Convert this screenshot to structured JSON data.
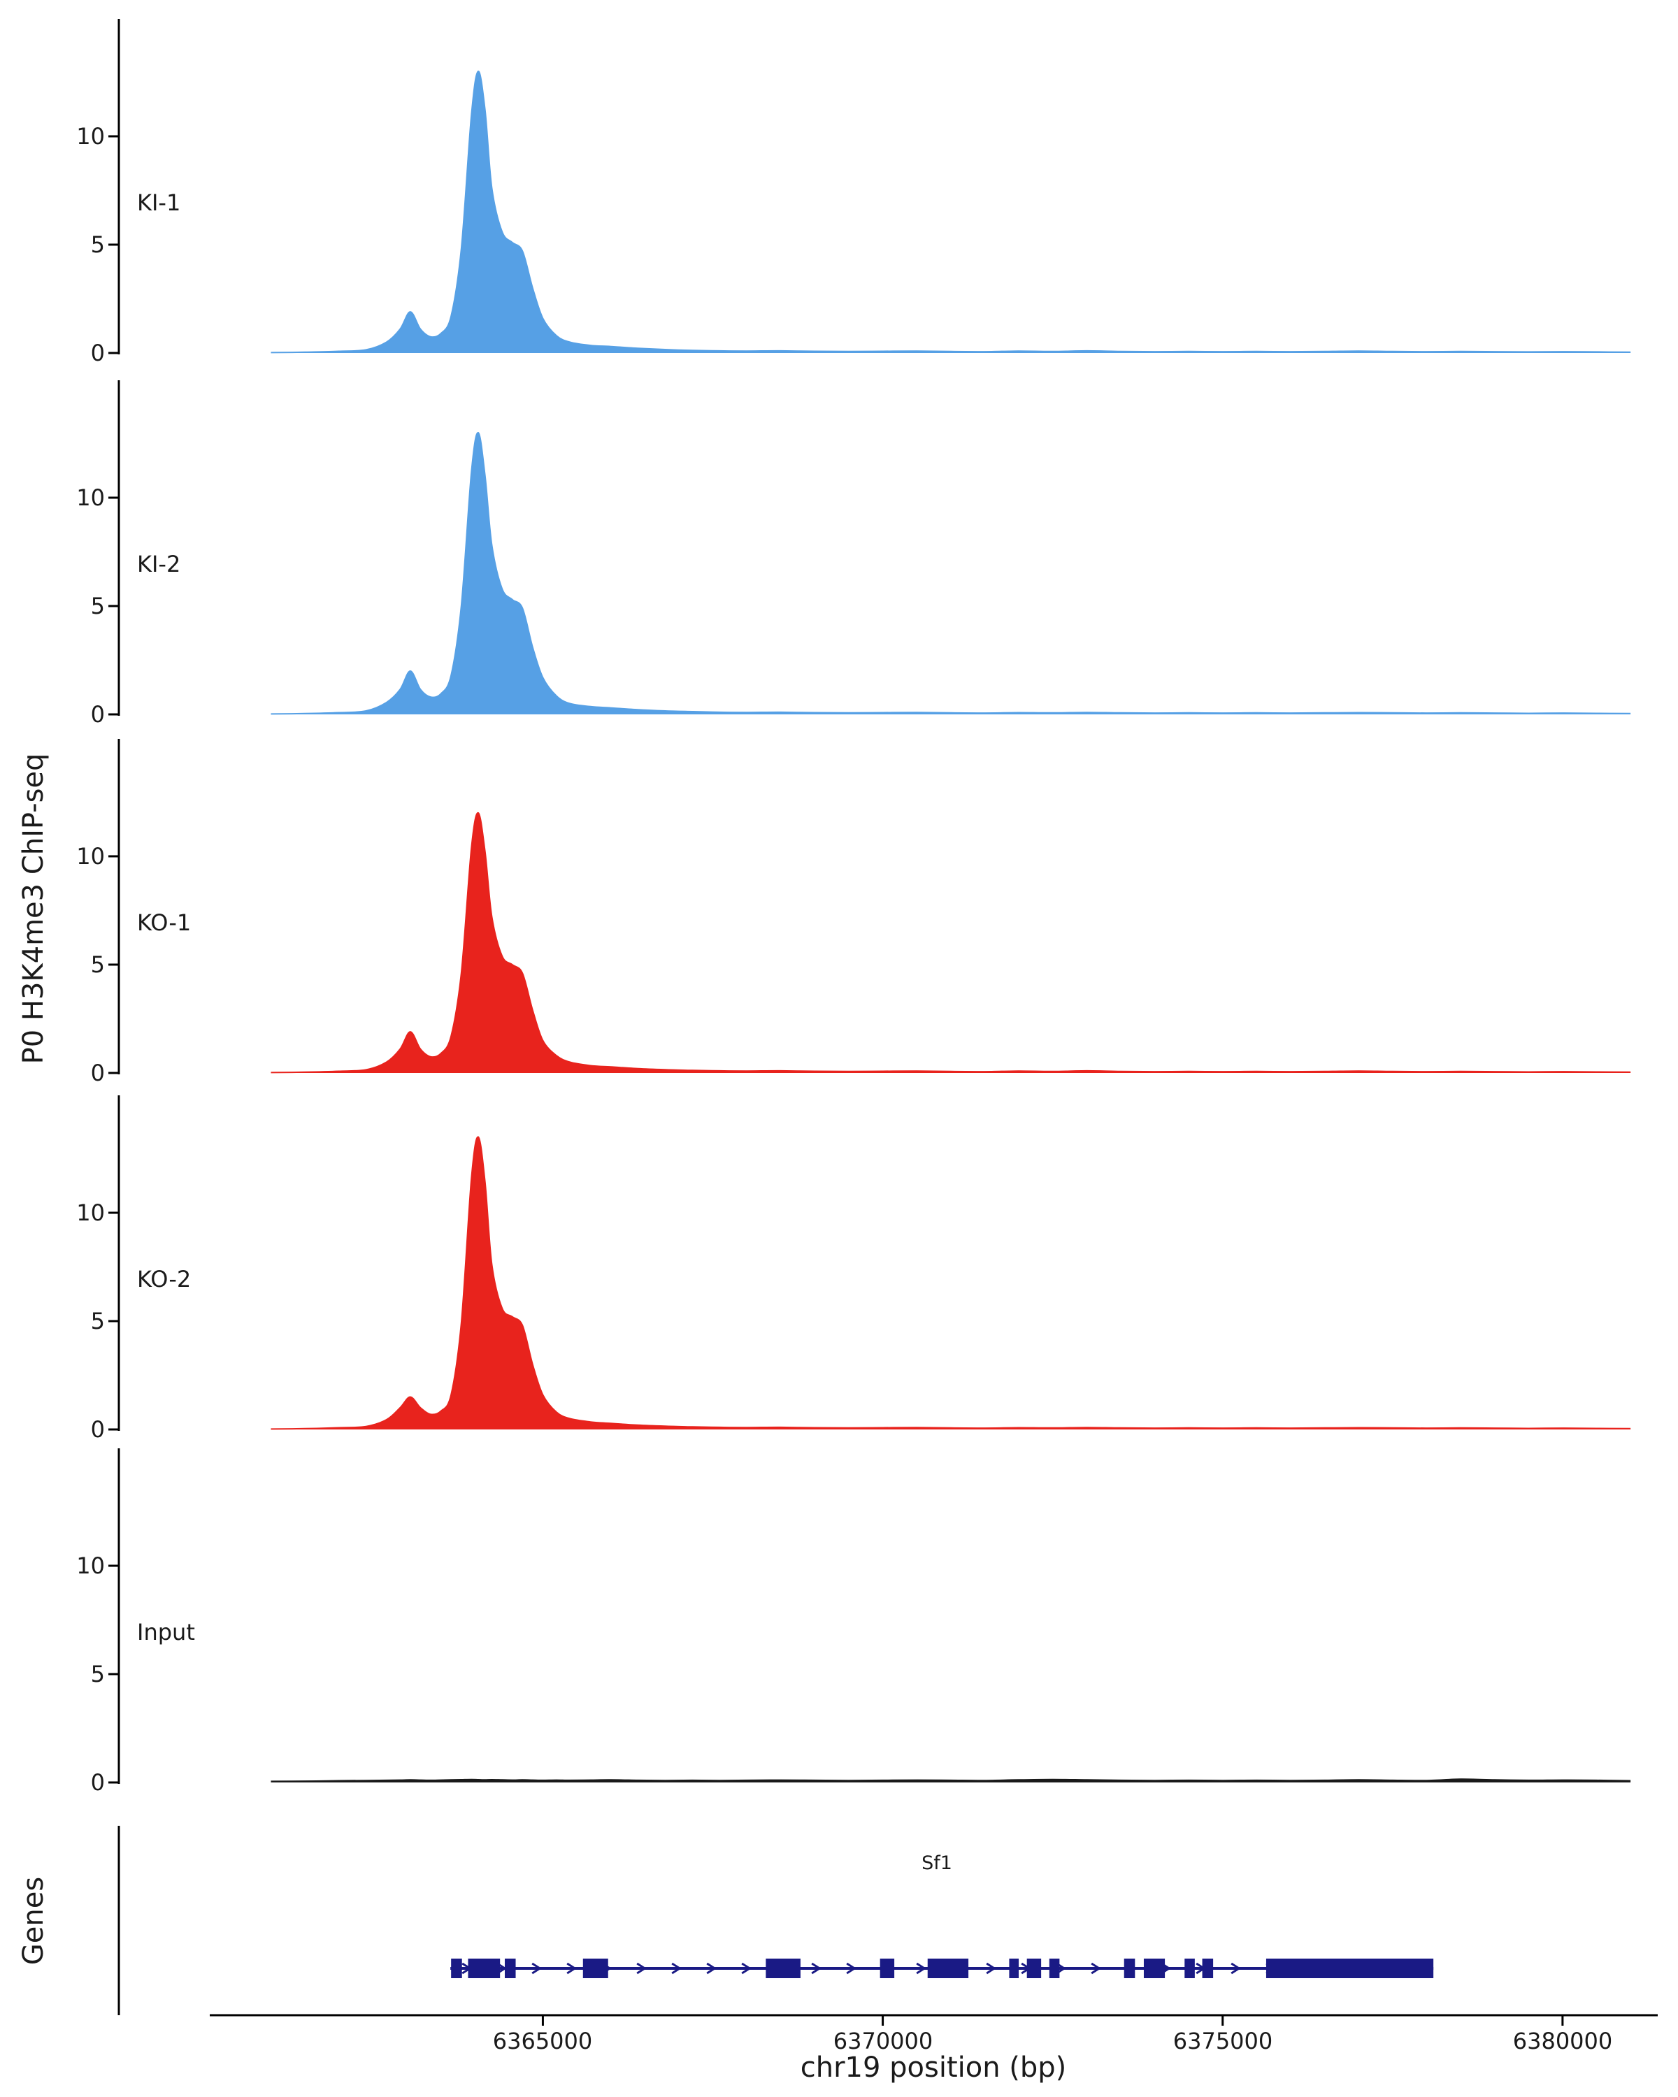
{
  "chart_data": {
    "type": "area",
    "xlabel": "chr19 position (bp)",
    "ylabel": "P0 H3K4me3 ChIP-seq",
    "genes_panel_label": "Genes",
    "chromosome": "chr19",
    "xlim": [
      6360100,
      6381400
    ],
    "track_ylim": [
      0,
      15
    ],
    "y_ticks": [
      0,
      5,
      10
    ],
    "y_tick_labels": {
      "top": "10",
      "mid": "5",
      "bottom": "0"
    },
    "x_ticks": [
      {
        "pos": 6365000,
        "label": "6365000"
      },
      {
        "pos": 6370000,
        "label": "6370000"
      },
      {
        "pos": 6375000,
        "label": "6375000"
      },
      {
        "pos": 6380000,
        "label": "6380000"
      }
    ],
    "x": [
      6361000,
      6361500,
      6362000,
      6362400,
      6362700,
      6362900,
      6363050,
      6363200,
      6363350,
      6363500,
      6363650,
      6363800,
      6363950,
      6364050,
      6364150,
      6364250,
      6364400,
      6364550,
      6364700,
      6364850,
      6365000,
      6365200,
      6365400,
      6365700,
      6366000,
      6366400,
      6366800,
      6367200,
      6367600,
      6368000,
      6368500,
      6369000,
      6369500,
      6370000,
      6370500,
      6371000,
      6371500,
      6372000,
      6372500,
      6373000,
      6373500,
      6374000,
      6374500,
      6375000,
      6375500,
      6376000,
      6376500,
      6377000,
      6377500,
      6378000,
      6378500,
      6379000,
      6379500,
      6380000,
      6380500,
      6381000
    ],
    "tracks": [
      {
        "label": "KI-1",
        "color": "#56a0e5",
        "values": [
          0.02,
          0.04,
          0.08,
          0.15,
          0.5,
          1.1,
          1.9,
          1.1,
          0.75,
          0.9,
          1.7,
          4.8,
          11.0,
          13.0,
          11.2,
          7.6,
          5.6,
          5.1,
          4.7,
          3.0,
          1.6,
          0.8,
          0.5,
          0.35,
          0.3,
          0.22,
          0.16,
          0.12,
          0.1,
          0.09,
          0.1,
          0.08,
          0.07,
          0.08,
          0.09,
          0.07,
          0.06,
          0.09,
          0.07,
          0.1,
          0.07,
          0.06,
          0.07,
          0.06,
          0.07,
          0.06,
          0.07,
          0.09,
          0.07,
          0.06,
          0.07,
          0.06,
          0.05,
          0.06,
          0.05,
          0.04
        ]
      },
      {
        "label": "KI-2",
        "color": "#56a0e5",
        "values": [
          0.02,
          0.04,
          0.08,
          0.16,
          0.55,
          1.15,
          2.0,
          1.15,
          0.8,
          0.95,
          1.8,
          5.0,
          11.2,
          13.0,
          11.0,
          7.8,
          5.8,
          5.3,
          4.9,
          3.1,
          1.7,
          0.85,
          0.5,
          0.36,
          0.3,
          0.22,
          0.16,
          0.13,
          0.1,
          0.09,
          0.1,
          0.08,
          0.07,
          0.08,
          0.09,
          0.07,
          0.06,
          0.08,
          0.07,
          0.09,
          0.07,
          0.06,
          0.07,
          0.06,
          0.07,
          0.06,
          0.07,
          0.08,
          0.07,
          0.06,
          0.07,
          0.06,
          0.05,
          0.06,
          0.05,
          0.04
        ]
      },
      {
        "label": "KO-1",
        "color": "#e8231d",
        "values": [
          0.02,
          0.04,
          0.08,
          0.15,
          0.5,
          1.1,
          1.9,
          1.1,
          0.75,
          0.9,
          1.7,
          4.6,
          10.4,
          12.0,
          10.2,
          7.2,
          5.4,
          5.0,
          4.6,
          2.9,
          1.5,
          0.8,
          0.5,
          0.34,
          0.28,
          0.2,
          0.15,
          0.12,
          0.1,
          0.09,
          0.1,
          0.08,
          0.07,
          0.08,
          0.09,
          0.07,
          0.06,
          0.09,
          0.07,
          0.1,
          0.07,
          0.06,
          0.07,
          0.06,
          0.07,
          0.06,
          0.07,
          0.09,
          0.07,
          0.06,
          0.07,
          0.06,
          0.05,
          0.06,
          0.05,
          0.04
        ]
      },
      {
        "label": "KO-2",
        "color": "#e8231d",
        "values": [
          0.02,
          0.04,
          0.08,
          0.14,
          0.45,
          1.0,
          1.5,
          1.0,
          0.7,
          0.85,
          1.6,
          4.9,
          11.6,
          13.5,
          11.4,
          7.6,
          5.6,
          5.2,
          4.8,
          3.0,
          1.6,
          0.8,
          0.5,
          0.35,
          0.28,
          0.2,
          0.15,
          0.12,
          0.1,
          0.09,
          0.1,
          0.08,
          0.07,
          0.08,
          0.09,
          0.07,
          0.06,
          0.08,
          0.07,
          0.09,
          0.07,
          0.06,
          0.07,
          0.06,
          0.07,
          0.06,
          0.07,
          0.08,
          0.07,
          0.06,
          0.07,
          0.06,
          0.05,
          0.06,
          0.05,
          0.04
        ]
      },
      {
        "label": "Input",
        "color": "#1a1a1a",
        "values": [
          0.05,
          0.06,
          0.08,
          0.09,
          0.1,
          0.11,
          0.12,
          0.11,
          0.1,
          0.11,
          0.12,
          0.13,
          0.14,
          0.13,
          0.12,
          0.13,
          0.12,
          0.11,
          0.12,
          0.11,
          0.1,
          0.11,
          0.1,
          0.11,
          0.12,
          0.1,
          0.09,
          0.1,
          0.09,
          0.1,
          0.11,
          0.1,
          0.09,
          0.1,
          0.11,
          0.1,
          0.09,
          0.12,
          0.14,
          0.12,
          0.1,
          0.09,
          0.1,
          0.09,
          0.1,
          0.09,
          0.1,
          0.12,
          0.1,
          0.09,
          0.15,
          0.12,
          0.1,
          0.11,
          0.1,
          0.08
        ]
      }
    ],
    "genes": {
      "label": "Sf1",
      "color": "#1a1a85",
      "strand": "+",
      "start": 6363640,
      "end": 6378100,
      "exons": [
        [
          6363650,
          6363810
        ],
        [
          6363900,
          6364370
        ],
        [
          6364440,
          6364600
        ],
        [
          6365590,
          6365960
        ],
        [
          6368280,
          6368790
        ],
        [
          6369960,
          6370170
        ],
        [
          6370660,
          6371260
        ],
        [
          6371860,
          6372000
        ],
        [
          6372120,
          6372330
        ],
        [
          6372450,
          6372600
        ],
        [
          6373550,
          6373710
        ],
        [
          6373840,
          6374150
        ],
        [
          6374440,
          6374590
        ],
        [
          6374700,
          6374860
        ],
        [
          6375640,
          6378100
        ]
      ]
    }
  }
}
